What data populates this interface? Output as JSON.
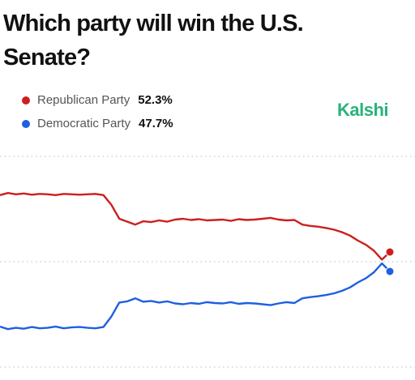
{
  "chart_data": {
    "type": "line",
    "title": "Which party will win the U.S. Senate?",
    "logo": "Kalshi",
    "ylim": [
      25,
      75
    ],
    "yticks": [
      25,
      50,
      75
    ],
    "grid": true,
    "series": [
      {
        "name": "Republican Party",
        "color": "#cc1f1f",
        "values": [
          65.8,
          66.3,
          66.0,
          66.2,
          65.9,
          66.1,
          66.0,
          65.8,
          66.1,
          66.0,
          65.9,
          66.0,
          66.1,
          65.8,
          63.5,
          60.2,
          59.5,
          58.8,
          59.6,
          59.4,
          59.8,
          59.5,
          60.0,
          60.2,
          59.9,
          60.1,
          59.8,
          59.9,
          60.0,
          59.7,
          60.1,
          59.9,
          60.0,
          60.2,
          60.4,
          60.0,
          59.8,
          59.9,
          58.8,
          58.5,
          58.3,
          58.0,
          57.6,
          57.0,
          56.2,
          55.0,
          54.0,
          52.6,
          50.5,
          52.3
        ],
        "latest": 52.3,
        "latest_label": "52.3%"
      },
      {
        "name": "Democratic Party",
        "color": "#1f5fe0",
        "values": [
          34.6,
          34.0,
          34.3,
          34.1,
          34.5,
          34.2,
          34.3,
          34.6,
          34.2,
          34.4,
          34.5,
          34.3,
          34.2,
          34.5,
          37.0,
          40.3,
          40.6,
          41.3,
          40.5,
          40.7,
          40.3,
          40.6,
          40.1,
          39.9,
          40.2,
          40.0,
          40.4,
          40.2,
          40.1,
          40.4,
          40.0,
          40.2,
          40.1,
          39.9,
          39.7,
          40.1,
          40.4,
          40.2,
          41.3,
          41.6,
          41.8,
          42.1,
          42.5,
          43.1,
          43.9,
          45.1,
          46.1,
          47.5,
          49.6,
          47.7
        ],
        "latest": 47.7,
        "latest_label": "47.7%"
      }
    ]
  }
}
